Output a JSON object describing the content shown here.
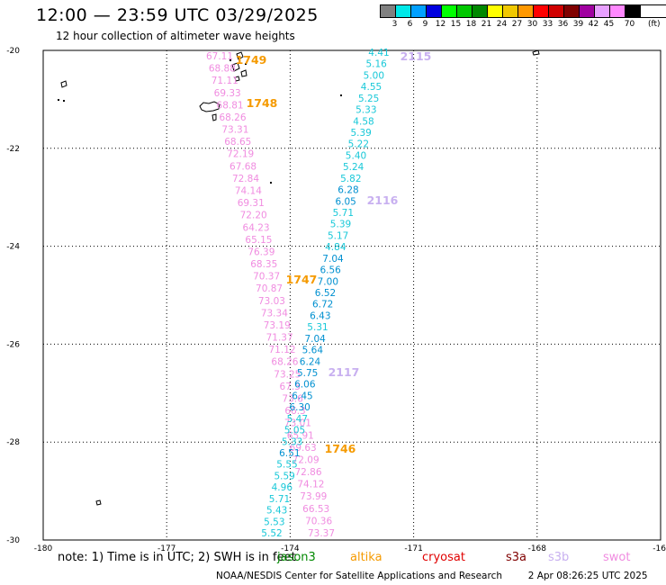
{
  "header": {
    "title": "12:00 — 23:59 UTC 03/29/2025",
    "subtitle": "12 hour collection of altimeter wave heights"
  },
  "colorbar": {
    "labels": [
      "3",
      "6",
      "9",
      "12",
      "15",
      "18",
      "21",
      "24",
      "27",
      "30",
      "33",
      "36",
      "39",
      "42",
      "45",
      "70"
    ],
    "colors": [
      "#808080",
      "#00e8e8",
      "#00a0ff",
      "#0000e0",
      "#00ff00",
      "#00c800",
      "#008800",
      "#ffff00",
      "#f0c800",
      "#ff9800",
      "#ff0000",
      "#d00000",
      "#800000",
      "#a000a0",
      "#e8a0ff",
      "#ff88ff",
      "#000000"
    ],
    "units": "(ft)"
  },
  "map": {
    "lon_range": [
      -180,
      -165
    ],
    "lat_range": [
      -30,
      -20
    ],
    "x_ticks": [
      "-180",
      "-177",
      "-174",
      "-171",
      "-168",
      "-16"
    ],
    "y_ticks": [
      "-20",
      "-22",
      "-24",
      "-26",
      "-28",
      "-30"
    ],
    "pass_labels": [
      {
        "text": "1749",
        "color": "#f59a00"
      },
      {
        "text": "1748",
        "color": "#f59a00"
      },
      {
        "text": "1747",
        "color": "#f59a00"
      },
      {
        "text": "1746",
        "color": "#f59a00"
      },
      {
        "text": "2115",
        "color": "#c8b0f0"
      },
      {
        "text": "2116",
        "color": "#c8b0f0"
      },
      {
        "text": "2117",
        "color": "#c8b0f0"
      }
    ],
    "track_pink": {
      "color": "#f08ce0",
      "values": [
        "67.11",
        "68.88",
        "71.11",
        "69.33",
        "68.81",
        "68.26",
        "73.31",
        "68.65",
        "72.19",
        "67.68",
        "72.84",
        "74.14",
        "69.31",
        "72.20",
        "64.23",
        "65.15",
        "76.39",
        "68.35",
        "70.37",
        "70.87",
        "73.03",
        "73.34",
        "73.19",
        "71.37",
        "71.12",
        "68.26",
        "73.25",
        "67.5",
        "73.6",
        "66.3",
        "73.01",
        "65.91",
        "69.63",
        "72.09",
        "72.86",
        "74.12",
        "73.99",
        "66.53",
        "70.36",
        "73.37"
      ]
    },
    "track_cyan": {
      "color": "#18c8d8",
      "values": [
        "4.41",
        "5.16",
        "5.00",
        "4.55",
        "5.25",
        "5.33",
        "4.58",
        "5.39",
        "5.22",
        "5.40",
        "5.24",
        "5.82",
        "6.28",
        "6.05",
        "5.71",
        "5.39",
        "5.17",
        "4.84",
        "7.04",
        "6.56",
        "7.00",
        "6.52",
        "6.72",
        "6.43",
        "5.31",
        "7.04",
        "5.64",
        "6.24",
        "5.75",
        "6.06",
        "6.45",
        "6.30",
        "5.47",
        "5.05",
        "5.33",
        "6.51",
        "5.55",
        "5.59",
        "4.96",
        "5.71",
        "5.43",
        "5.53",
        "5.52"
      ]
    },
    "track_cyan_dark": {
      "color": "#0090d0",
      "indices": [
        12,
        13,
        18,
        19,
        20,
        21,
        22,
        23,
        25,
        26,
        27,
        28,
        29,
        30,
        31,
        35
      ]
    }
  },
  "legend": {
    "note": "note:  1) Time is in UTC; 2) SWH is in feet",
    "missions": [
      {
        "name": "jason3",
        "color": "#008800"
      },
      {
        "name": "altika",
        "color": "#f59a00"
      },
      {
        "name": "cryosat",
        "color": "#e00000"
      },
      {
        "name": "s3a",
        "color": "#800000"
      },
      {
        "name": "s3b",
        "color": "#c8b0f0"
      },
      {
        "name": "swot",
        "color": "#f08ce0"
      }
    ]
  },
  "footer": {
    "credit": "NOAA/NESDIS Center for Satellite Applications and Research",
    "timestamp": "2 Apr 08:26:25 UTC 2025"
  }
}
